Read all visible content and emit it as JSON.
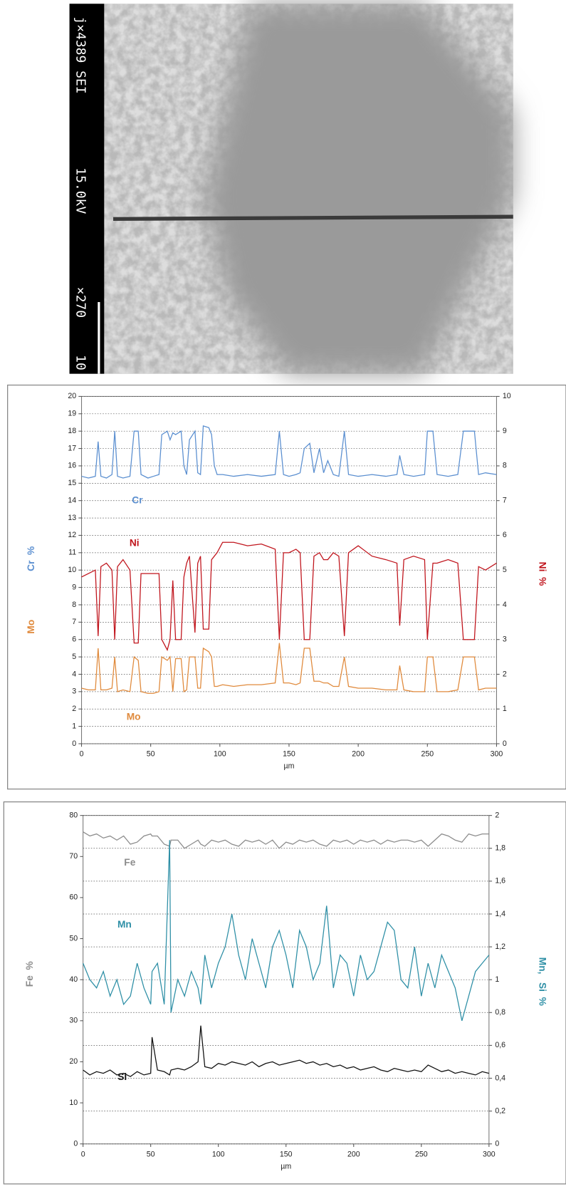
{
  "image": {
    "labels": [
      "j×4389 SEI",
      "15.0kV",
      "×270",
      "10"
    ]
  },
  "chart_data": [
    {
      "type": "line",
      "xlabel": "µm",
      "ylabels": [
        "Cr  %",
        "Mo"
      ],
      "y2label": "Ni  %",
      "grid": "y",
      "xlim": [
        0,
        300
      ],
      "xticks": [
        0,
        50,
        100,
        150,
        200,
        250,
        300
      ],
      "ylim": [
        0,
        20
      ],
      "yticks": [
        0,
        1,
        2,
        3,
        4,
        5,
        6,
        7,
        8,
        9,
        10,
        11,
        12,
        13,
        14,
        15,
        16,
        17,
        18,
        19,
        20
      ],
      "y2lim": [
        0,
        10
      ],
      "y2ticks": [
        0,
        1,
        2,
        3,
        4,
        5,
        6,
        7,
        8,
        9,
        10
      ],
      "x": [
        0,
        5,
        10,
        12,
        14,
        18,
        22,
        24,
        26,
        30,
        35,
        38,
        41,
        43,
        48,
        52,
        56,
        58,
        62,
        64,
        66,
        68,
        72,
        74,
        76,
        78,
        82,
        84,
        86,
        88,
        92,
        94,
        96,
        98,
        102,
        110,
        120,
        130,
        140,
        143,
        146,
        150,
        155,
        158,
        161,
        165,
        168,
        172,
        175,
        178,
        182,
        186,
        190,
        193,
        200,
        210,
        220,
        228,
        230,
        233,
        240,
        248,
        250,
        254,
        257,
        265,
        272,
        276,
        284,
        287,
        292,
        300
      ],
      "series": [
        {
          "name": "Cr",
          "color": "#5b8fd0",
          "values": [
            15.4,
            15.3,
            15.4,
            17.4,
            15.4,
            15.3,
            15.5,
            18.0,
            15.4,
            15.3,
            15.4,
            18.0,
            18.0,
            15.5,
            15.3,
            15.4,
            15.5,
            17.8,
            18.0,
            17.5,
            17.9,
            17.8,
            18.0,
            16.0,
            15.5,
            17.5,
            18.0,
            15.6,
            15.5,
            18.3,
            18.2,
            17.8,
            16.0,
            15.5,
            15.5,
            15.4,
            15.5,
            15.4,
            15.5,
            18.0,
            15.5,
            15.4,
            15.5,
            15.6,
            17.0,
            17.3,
            15.6,
            17.0,
            15.6,
            16.3,
            15.5,
            15.4,
            18.0,
            15.5,
            15.4,
            15.5,
            15.4,
            15.5,
            16.6,
            15.5,
            15.4,
            15.5,
            18.0,
            18.0,
            15.5,
            15.4,
            15.5,
            18.0,
            18.0,
            15.5,
            15.6,
            15.5
          ]
        },
        {
          "name": "Ni",
          "color": "#c0141c",
          "axis": "y2",
          "values": [
            4.8,
            4.9,
            5.0,
            3.1,
            5.1,
            5.2,
            5.0,
            3.0,
            5.1,
            5.3,
            5.0,
            2.9,
            2.9,
            4.9,
            4.9,
            4.9,
            4.9,
            3.0,
            2.7,
            3.0,
            4.7,
            3.0,
            3.0,
            4.8,
            5.2,
            5.4,
            3.2,
            5.2,
            5.4,
            3.3,
            3.3,
            5.3,
            5.4,
            5.5,
            5.8,
            5.8,
            5.7,
            5.75,
            5.6,
            3.0,
            5.5,
            5.5,
            5.6,
            5.5,
            3.0,
            3.0,
            5.4,
            5.5,
            5.3,
            5.3,
            5.5,
            5.4,
            3.1,
            5.5,
            5.7,
            5.4,
            5.3,
            5.2,
            3.4,
            5.3,
            5.4,
            5.3,
            3.0,
            5.2,
            5.2,
            5.3,
            5.2,
            3.0,
            3.0,
            5.1,
            5.0,
            5.2
          ]
        },
        {
          "name": "Mo",
          "color": "#e08a3c",
          "values": [
            3.2,
            3.1,
            3.1,
            5.5,
            3.1,
            3.1,
            3.2,
            5.0,
            3.0,
            3.1,
            3.0,
            5.0,
            4.8,
            3.0,
            2.9,
            2.9,
            3.0,
            5.0,
            4.8,
            5.0,
            3.0,
            4.9,
            4.9,
            3.0,
            3.1,
            5.0,
            5.0,
            3.2,
            3.2,
            5.5,
            5.3,
            5.0,
            3.3,
            3.3,
            3.4,
            3.3,
            3.4,
            3.4,
            3.5,
            5.8,
            3.5,
            3.5,
            3.4,
            3.5,
            5.5,
            5.5,
            3.6,
            3.6,
            3.5,
            3.5,
            3.3,
            3.3,
            5.0,
            3.3,
            3.2,
            3.2,
            3.1,
            3.1,
            4.5,
            3.1,
            3.0,
            3.0,
            5.0,
            5.0,
            3.0,
            3.0,
            3.1,
            5.0,
            5.0,
            3.1,
            3.2,
            3.2
          ]
        }
      ]
    },
    {
      "type": "line",
      "xlabel": "µm",
      "ylabels": [
        "Fe  %"
      ],
      "y2label": "Mn,   Si  %",
      "grid": "y2",
      "xlim": [
        0,
        300
      ],
      "xticks": [
        0,
        50,
        100,
        150,
        200,
        250,
        300
      ],
      "ylim": [
        0,
        80
      ],
      "yticks": [
        0,
        10,
        20,
        30,
        40,
        50,
        60,
        70,
        80
      ],
      "y2lim": [
        0,
        2
      ],
      "y2ticks": [
        0,
        {
          "value": 0.2,
          "label": "0,2"
        },
        {
          "value": 0.4,
          "label": "0,4"
        },
        {
          "value": 0.6,
          "label": "0,6"
        },
        {
          "value": 0.8,
          "label": "0,8"
        },
        1,
        {
          "value": 1.2,
          "label": "1,2"
        },
        {
          "value": 1.4,
          "label": "1,4"
        },
        {
          "value": 1.6,
          "label": "1,6"
        },
        {
          "value": 1.8,
          "label": "1,8"
        },
        2
      ],
      "x": [
        0,
        5,
        10,
        15,
        20,
        25,
        30,
        35,
        40,
        45,
        50,
        51,
        55,
        60,
        64,
        65,
        70,
        75,
        80,
        85,
        87,
        90,
        95,
        100,
        105,
        110,
        115,
        120,
        125,
        130,
        135,
        140,
        145,
        150,
        155,
        160,
        165,
        170,
        175,
        180,
        185,
        190,
        195,
        200,
        205,
        210,
        215,
        220,
        225,
        230,
        235,
        240,
        245,
        250,
        255,
        260,
        265,
        270,
        275,
        280,
        285,
        290,
        295,
        300
      ],
      "series": [
        {
          "name": "Fe",
          "color": "#8c8c8c",
          "values": [
            76,
            75,
            75.5,
            74.5,
            75,
            74,
            75,
            73,
            73.5,
            75,
            75.5,
            75,
            75,
            73,
            72.5,
            74,
            74,
            72,
            73,
            74,
            73,
            72.5,
            74,
            73.5,
            74,
            73,
            72.5,
            74,
            73.5,
            74,
            73,
            74,
            72,
            73.5,
            73,
            74,
            73.5,
            74,
            73,
            72.5,
            74,
            73.5,
            74,
            73,
            74,
            73.5,
            74,
            73,
            74,
            73.5,
            74,
            74,
            73.5,
            74,
            72.5,
            74,
            75.5,
            75,
            74,
            73.5,
            75.5,
            75,
            75.5,
            75.5
          ]
        },
        {
          "name": "Mn",
          "color": "#2e8fa6",
          "axis": "y2",
          "values": [
            1.1,
            1.0,
            0.95,
            1.05,
            0.9,
            1.0,
            0.85,
            0.9,
            1.1,
            0.95,
            0.85,
            1.05,
            1.1,
            0.85,
            1.85,
            0.8,
            1.0,
            0.9,
            1.05,
            0.95,
            0.85,
            1.15,
            0.95,
            1.1,
            1.2,
            1.4,
            1.15,
            1.0,
            1.25,
            1.1,
            0.95,
            1.2,
            1.3,
            1.15,
            0.95,
            1.3,
            1.2,
            1.0,
            1.1,
            1.45,
            0.95,
            1.15,
            1.1,
            0.9,
            1.15,
            1.0,
            1.05,
            1.2,
            1.35,
            1.3,
            1.0,
            0.95,
            1.2,
            0.9,
            1.1,
            0.95,
            1.15,
            1.05,
            0.95,
            0.75,
            0.9,
            1.05,
            1.1,
            1.15
          ]
        },
        {
          "name": "Si",
          "color": "#111111",
          "axis": "y2",
          "values": [
            0.45,
            0.42,
            0.44,
            0.43,
            0.45,
            0.42,
            0.43,
            0.41,
            0.44,
            0.42,
            0.43,
            0.65,
            0.45,
            0.44,
            0.42,
            0.45,
            0.46,
            0.45,
            0.47,
            0.5,
            0.72,
            0.47,
            0.46,
            0.49,
            0.48,
            0.5,
            0.49,
            0.48,
            0.5,
            0.47,
            0.49,
            0.5,
            0.48,
            0.49,
            0.5,
            0.51,
            0.49,
            0.5,
            0.48,
            0.49,
            0.47,
            0.48,
            0.46,
            0.47,
            0.45,
            0.46,
            0.47,
            0.45,
            0.44,
            0.46,
            0.45,
            0.44,
            0.45,
            0.44,
            0.48,
            0.46,
            0.44,
            0.45,
            0.43,
            0.44,
            0.43,
            0.42,
            0.44,
            0.43
          ]
        }
      ]
    }
  ]
}
